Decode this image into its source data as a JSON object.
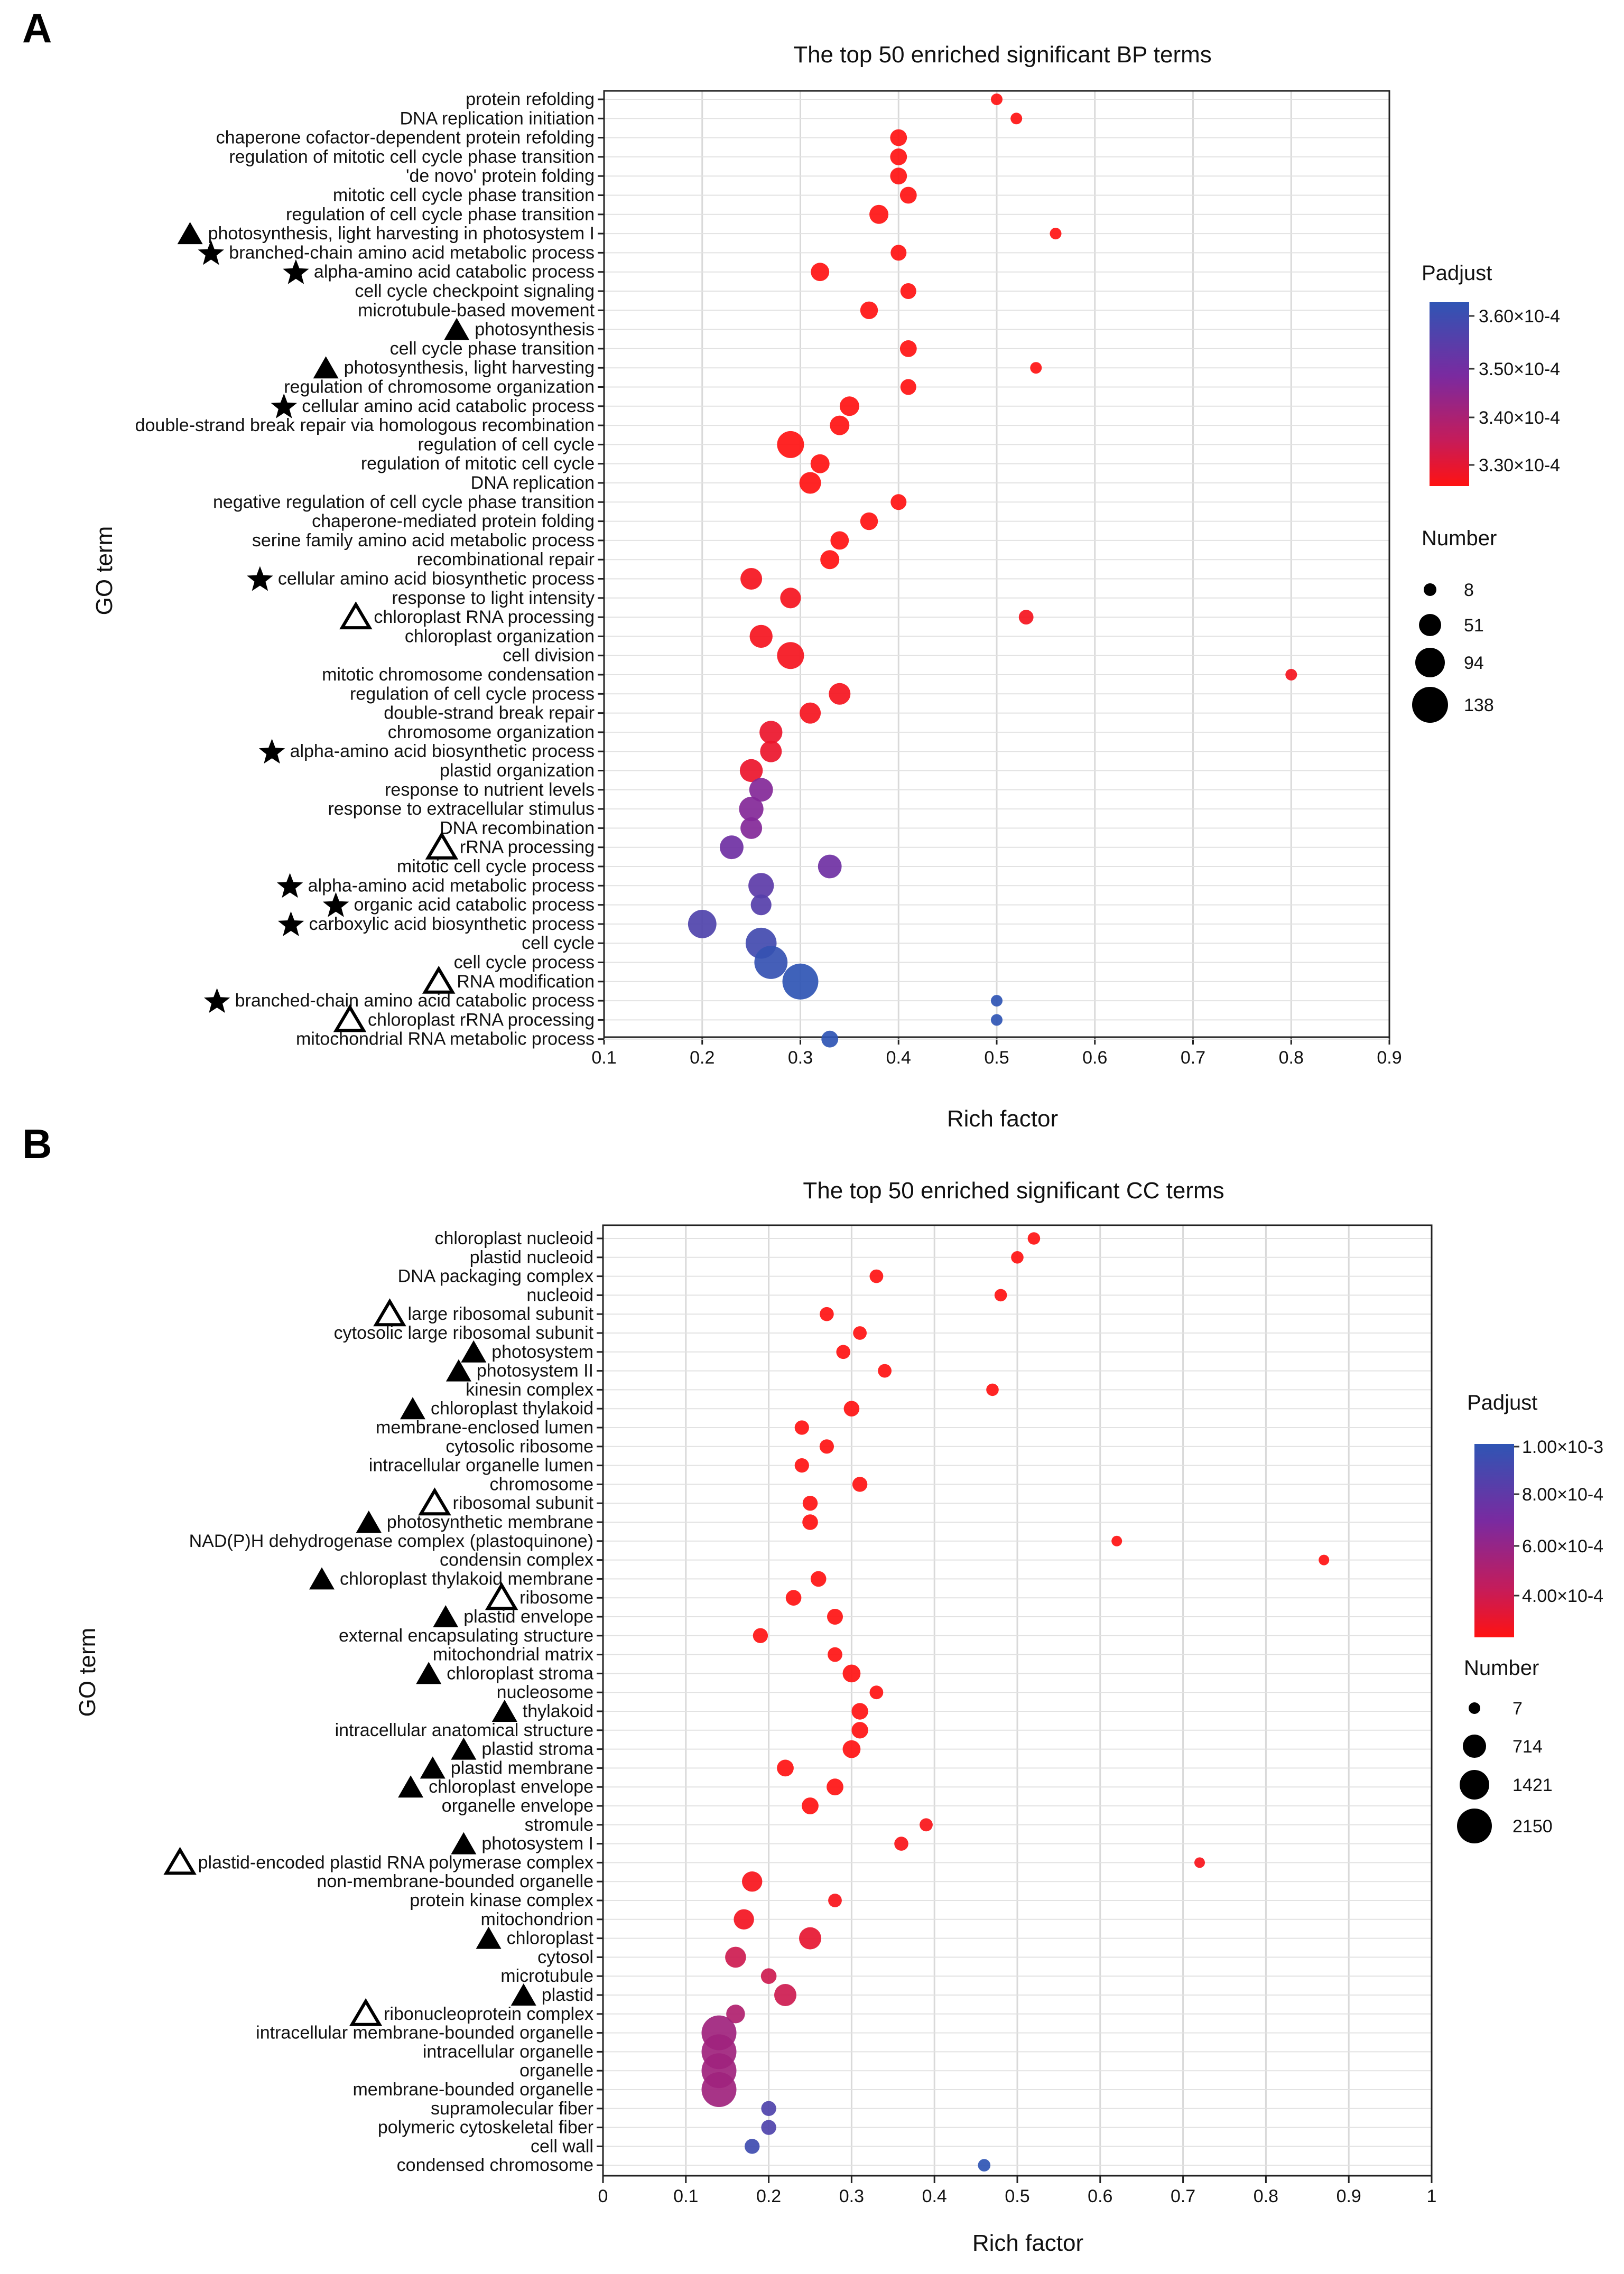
{
  "chart_data": [
    {
      "panel": "A",
      "type": "scatter",
      "title": "The top 50 enriched significant BP terms",
      "xlabel": "Rich factor",
      "ylabel": "GO term",
      "xlim": [
        0.1,
        0.9
      ],
      "xticks": [
        0.1,
        0.2,
        0.3,
        0.4,
        0.5,
        0.6,
        0.7,
        0.8,
        0.9
      ],
      "xtick_labels": [
        "0.1",
        "0.2",
        "0.3",
        "0.4",
        "0.5",
        "0.6",
        "0.7",
        "0.8",
        "0.9"
      ],
      "color_legend": {
        "title": "Padjust",
        "labels": [
          "3.60×10-4",
          "3.50×10-4",
          "3.40×10-4",
          "3.30×10-4"
        ],
        "colors": [
          "#3a4fb0",
          "#7b2d9e",
          "#c02060",
          "#ff1010"
        ]
      },
      "size_legend": {
        "title": "Number",
        "values": [
          8,
          51,
          94,
          138
        ],
        "labels": [
          "8",
          "51",
          "94",
          "138"
        ]
      },
      "marker_colors": {
        "filled_triangle": "#000000",
        "star": "#000000",
        "open_triangle": "#000000"
      },
      "terms": [
        {
          "label": "protein refolding",
          "x": 0.5,
          "number": 8,
          "padj": 0.000328,
          "marker": ""
        },
        {
          "label": "DNA replication initiation",
          "x": 0.52,
          "number": 8,
          "padj": 0.000328,
          "marker": ""
        },
        {
          "label": "chaperone cofactor-dependent protein refolding",
          "x": 0.4,
          "number": 14,
          "padj": 0.000328,
          "marker": ""
        },
        {
          "label": "regulation of mitotic cell cycle phase transition",
          "x": 0.4,
          "number": 14,
          "padj": 0.000328,
          "marker": ""
        },
        {
          "label": "'de novo' protein folding",
          "x": 0.4,
          "number": 14,
          "padj": 0.000328,
          "marker": ""
        },
        {
          "label": "mitotic cell cycle phase transition",
          "x": 0.41,
          "number": 14,
          "padj": 0.000328,
          "marker": ""
        },
        {
          "label": "regulation of cell cycle phase transition",
          "x": 0.38,
          "number": 20,
          "padj": 0.000328,
          "marker": ""
        },
        {
          "label": "photosynthesis, light harvesting in photosystem I",
          "x": 0.56,
          "number": 8,
          "padj": 0.000328,
          "marker": "filled_triangle"
        },
        {
          "label": "branched-chain amino acid metabolic process",
          "x": 0.4,
          "number": 12,
          "padj": 0.000328,
          "marker": "star"
        },
        {
          "label": "alpha-amino acid catabolic process",
          "x": 0.32,
          "number": 18,
          "padj": 0.000328,
          "marker": "star"
        },
        {
          "label": "cell cycle checkpoint signaling",
          "x": 0.41,
          "number": 12,
          "padj": 0.000328,
          "marker": ""
        },
        {
          "label": "microtubule-based movement",
          "x": 0.37,
          "number": 16,
          "padj": 0.000328,
          "marker": ""
        },
        {
          "label": "photosynthesis",
          "x": null,
          "number": null,
          "padj": null,
          "marker": "filled_triangle"
        },
        {
          "label": "cell cycle phase transition",
          "x": 0.41,
          "number": 14,
          "padj": 0.000328,
          "marker": ""
        },
        {
          "label": "photosynthesis, light harvesting",
          "x": 0.54,
          "number": 8,
          "padj": 0.000328,
          "marker": "filled_triangle"
        },
        {
          "label": "regulation of chromosome organization",
          "x": 0.41,
          "number": 12,
          "padj": 0.000328,
          "marker": ""
        },
        {
          "label": "cellular amino acid catabolic process",
          "x": 0.35,
          "number": 22,
          "padj": 0.000328,
          "marker": "star"
        },
        {
          "label": "double-strand break repair via homologous recombination",
          "x": 0.34,
          "number": 22,
          "padj": 0.000328,
          "marker": ""
        },
        {
          "label": "regulation of cell cycle",
          "x": 0.29,
          "number": 60,
          "padj": 0.000328,
          "marker": ""
        },
        {
          "label": "regulation of mitotic cell cycle",
          "x": 0.32,
          "number": 20,
          "padj": 0.000328,
          "marker": ""
        },
        {
          "label": "DNA replication",
          "x": 0.31,
          "number": 30,
          "padj": 0.000328,
          "marker": ""
        },
        {
          "label": "negative regulation of cell cycle phase transition",
          "x": 0.4,
          "number": 12,
          "padj": 0.000328,
          "marker": ""
        },
        {
          "label": "chaperone-mediated protein folding",
          "x": 0.37,
          "number": 16,
          "padj": 0.000328,
          "marker": ""
        },
        {
          "label": "serine family amino acid metabolic process",
          "x": 0.34,
          "number": 18,
          "padj": 0.000328,
          "marker": ""
        },
        {
          "label": "recombinational repair",
          "x": 0.33,
          "number": 20,
          "padj": 0.000328,
          "marker": ""
        },
        {
          "label": "cellular amino acid biosynthetic process",
          "x": 0.25,
          "number": 30,
          "padj": 0.00033,
          "marker": "star"
        },
        {
          "label": "response to light intensity",
          "x": 0.29,
          "number": 26,
          "padj": 0.00033,
          "marker": ""
        },
        {
          "label": "chloroplast RNA processing",
          "x": 0.53,
          "number": 10,
          "padj": 0.00033,
          "marker": "open_triangle"
        },
        {
          "label": "chloroplast organization",
          "x": 0.26,
          "number": 36,
          "padj": 0.00033,
          "marker": ""
        },
        {
          "label": "cell division",
          "x": 0.29,
          "number": 60,
          "padj": 0.00033,
          "marker": ""
        },
        {
          "label": "mitotic chromosome condensation",
          "x": 0.8,
          "number": 8,
          "padj": 0.00033,
          "marker": ""
        },
        {
          "label": "regulation of cell cycle process",
          "x": 0.34,
          "number": 30,
          "padj": 0.00033,
          "marker": ""
        },
        {
          "label": "double-strand break repair",
          "x": 0.31,
          "number": 28,
          "padj": 0.00033,
          "marker": ""
        },
        {
          "label": "chromosome organization",
          "x": 0.27,
          "number": 36,
          "padj": 0.000332,
          "marker": ""
        },
        {
          "label": "alpha-amino acid biosynthetic process",
          "x": 0.27,
          "number": 30,
          "padj": 0.000332,
          "marker": "star"
        },
        {
          "label": "plastid organization",
          "x": 0.25,
          "number": 36,
          "padj": 0.000332,
          "marker": ""
        },
        {
          "label": "response to nutrient levels",
          "x": 0.26,
          "number": 40,
          "padj": 0.00035,
          "marker": ""
        },
        {
          "label": "response to extracellular stimulus",
          "x": 0.25,
          "number": 44,
          "padj": 0.00035,
          "marker": ""
        },
        {
          "label": "DNA recombination",
          "x": 0.25,
          "number": 30,
          "padj": 0.00035,
          "marker": ""
        },
        {
          "label": "rRNA processing",
          "x": 0.23,
          "number": 40,
          "padj": 0.000353,
          "marker": "open_triangle"
        },
        {
          "label": "mitotic cell cycle process",
          "x": 0.33,
          "number": 40,
          "padj": 0.000353,
          "marker": ""
        },
        {
          "label": "alpha-amino acid metabolic process",
          "x": 0.26,
          "number": 50,
          "padj": 0.000356,
          "marker": "star"
        },
        {
          "label": "organic acid catabolic process",
          "x": 0.26,
          "number": 26,
          "padj": 0.000357,
          "marker": "star"
        },
        {
          "label": "carboxylic acid biosynthetic process",
          "x": 0.2,
          "number": 70,
          "padj": 0.000358,
          "marker": "star"
        },
        {
          "label": "cell cycle",
          "x": 0.26,
          "number": 90,
          "padj": 0.00036,
          "marker": ""
        },
        {
          "label": "cell cycle process",
          "x": 0.27,
          "number": 110,
          "padj": 0.000362,
          "marker": ""
        },
        {
          "label": "RNA modification",
          "x": 0.3,
          "number": 138,
          "padj": 0.000363,
          "marker": "open_triangle"
        },
        {
          "label": "branched-chain amino acid catabolic process",
          "x": 0.5,
          "number": 8,
          "padj": 0.000363,
          "marker": "star"
        },
        {
          "label": "chloroplast rRNA processing",
          "x": 0.5,
          "number": 8,
          "padj": 0.000363,
          "marker": "open_triangle"
        },
        {
          "label": "mitochondrial RNA metabolic process",
          "x": 0.33,
          "number": 14,
          "padj": 0.000363,
          "marker": ""
        }
      ]
    },
    {
      "panel": "B",
      "type": "scatter",
      "title": "The top 50 enriched significant CC terms",
      "xlabel": "Rich factor",
      "ylabel": "GO term",
      "xlim": [
        0,
        1
      ],
      "xticks": [
        0,
        0.1,
        0.2,
        0.3,
        0.4,
        0.5,
        0.6,
        0.7,
        0.8,
        0.9,
        1
      ],
      "xtick_labels": [
        "0",
        "0.1",
        "0.2",
        "0.3",
        "0.4",
        "0.5",
        "0.6",
        "0.7",
        "0.8",
        "0.9",
        "1"
      ],
      "color_legend": {
        "title": "Padjust",
        "labels": [
          "1.00×10-3",
          "8.00×10-4",
          "6.00×10-4",
          "4.00×10-4"
        ],
        "colors": [
          "#3a4fb0",
          "#7b2d9e",
          "#c02060",
          "#ff1010"
        ]
      },
      "size_legend": {
        "title": "Number",
        "values": [
          7,
          714,
          1421,
          2150
        ],
        "labels": [
          "7",
          "714",
          "1421",
          "2150"
        ]
      },
      "marker_colors": {
        "filled_triangle": "#000000",
        "star": "#000000",
        "open_triangle": "#000000"
      },
      "terms": [
        {
          "label": "chloroplast nucleoid",
          "x": 0.52,
          "number": 20,
          "padj": 0.0003,
          "marker": ""
        },
        {
          "label": "plastid nucleoid",
          "x": 0.5,
          "number": 20,
          "padj": 0.0003,
          "marker": ""
        },
        {
          "label": "DNA packaging complex",
          "x": 0.33,
          "number": 40,
          "padj": 0.0003,
          "marker": ""
        },
        {
          "label": "nucleoid",
          "x": 0.48,
          "number": 20,
          "padj": 0.0003,
          "marker": ""
        },
        {
          "label": "large ribosomal subunit",
          "x": 0.27,
          "number": 50,
          "padj": 0.0003,
          "marker": "open_triangle"
        },
        {
          "label": "cytosolic large ribosomal subunit",
          "x": 0.31,
          "number": 40,
          "padj": 0.0003,
          "marker": ""
        },
        {
          "label": "photosystem",
          "x": 0.29,
          "number": 50,
          "padj": 0.0003,
          "marker": "filled_triangle"
        },
        {
          "label": "photosystem II",
          "x": 0.34,
          "number": 40,
          "padj": 0.0003,
          "marker": "filled_triangle"
        },
        {
          "label": "kinesin complex",
          "x": 0.47,
          "number": 20,
          "padj": 0.0003,
          "marker": ""
        },
        {
          "label": "chloroplast thylakoid",
          "x": 0.3,
          "number": 100,
          "padj": 0.0003,
          "marker": "filled_triangle"
        },
        {
          "label": "membrane-enclosed lumen",
          "x": 0.24,
          "number": 60,
          "padj": 0.0003,
          "marker": ""
        },
        {
          "label": "cytosolic ribosome",
          "x": 0.27,
          "number": 60,
          "padj": 0.0003,
          "marker": ""
        },
        {
          "label": "intracellular organelle lumen",
          "x": 0.24,
          "number": 60,
          "padj": 0.0003,
          "marker": ""
        },
        {
          "label": "chromosome",
          "x": 0.31,
          "number": 80,
          "padj": 0.0003,
          "marker": ""
        },
        {
          "label": "ribosomal subunit",
          "x": 0.25,
          "number": 80,
          "padj": 0.0003,
          "marker": "open_triangle"
        },
        {
          "label": "photosynthetic membrane",
          "x": 0.25,
          "number": 100,
          "padj": 0.0003,
          "marker": "filled_triangle"
        },
        {
          "label": "NAD(P)H dehydrogenase complex (plastoquinone)",
          "x": 0.62,
          "number": 7,
          "padj": 0.0003,
          "marker": ""
        },
        {
          "label": "condensin complex",
          "x": 0.87,
          "number": 7,
          "padj": 0.0003,
          "marker": ""
        },
        {
          "label": "chloroplast thylakoid membrane",
          "x": 0.26,
          "number": 100,
          "padj": 0.0003,
          "marker": "filled_triangle"
        },
        {
          "label": "ribosome",
          "x": 0.23,
          "number": 100,
          "padj": 0.0003,
          "marker": "open_triangle"
        },
        {
          "label": "plastid envelope",
          "x": 0.28,
          "number": 110,
          "padj": 0.0003,
          "marker": "filled_triangle"
        },
        {
          "label": "external encapsulating structure",
          "x": 0.19,
          "number": 80,
          "padj": 0.0003,
          "marker": ""
        },
        {
          "label": "mitochondrial matrix",
          "x": 0.28,
          "number": 70,
          "padj": 0.0003,
          "marker": ""
        },
        {
          "label": "chloroplast stroma",
          "x": 0.3,
          "number": 200,
          "padj": 0.0003,
          "marker": "filled_triangle"
        },
        {
          "label": "nucleosome",
          "x": 0.33,
          "number": 40,
          "padj": 0.0003,
          "marker": ""
        },
        {
          "label": "thylakoid",
          "x": 0.31,
          "number": 140,
          "padj": 0.0003,
          "marker": "filled_triangle"
        },
        {
          "label": "intracellular anatomical structure",
          "x": 0.31,
          "number": 140,
          "padj": 0.0003,
          "marker": ""
        },
        {
          "label": "plastid stroma",
          "x": 0.3,
          "number": 200,
          "padj": 0.0003,
          "marker": "filled_triangle"
        },
        {
          "label": "plastid membrane",
          "x": 0.22,
          "number": 150,
          "padj": 0.0003,
          "marker": "filled_triangle"
        },
        {
          "label": "chloroplast envelope",
          "x": 0.28,
          "number": 150,
          "padj": 0.0003,
          "marker": "filled_triangle"
        },
        {
          "label": "organelle envelope",
          "x": 0.25,
          "number": 150,
          "padj": 0.0003,
          "marker": ""
        },
        {
          "label": "stromule",
          "x": 0.39,
          "number": 30,
          "padj": 0.00032,
          "marker": ""
        },
        {
          "label": "photosystem I",
          "x": 0.36,
          "number": 50,
          "padj": 0.00032,
          "marker": "filled_triangle"
        },
        {
          "label": "plastid-encoded plastid RNA polymerase complex",
          "x": 0.72,
          "number": 7,
          "padj": 0.00033,
          "marker": "open_triangle"
        },
        {
          "label": "non-membrane-bounded organelle",
          "x": 0.18,
          "number": 350,
          "padj": 0.00033,
          "marker": ""
        },
        {
          "label": "protein kinase complex",
          "x": 0.28,
          "number": 40,
          "padj": 0.00033,
          "marker": ""
        },
        {
          "label": "mitochondrion",
          "x": 0.17,
          "number": 350,
          "padj": 0.00035,
          "marker": ""
        },
        {
          "label": "chloroplast",
          "x": 0.25,
          "number": 500,
          "padj": 0.0004,
          "marker": "filled_triangle"
        },
        {
          "label": "cytosol",
          "x": 0.16,
          "number": 400,
          "padj": 0.0005,
          "marker": ""
        },
        {
          "label": "microtubule",
          "x": 0.2,
          "number": 100,
          "padj": 0.0005,
          "marker": ""
        },
        {
          "label": "plastid",
          "x": 0.22,
          "number": 500,
          "padj": 0.0005,
          "marker": "filled_triangle"
        },
        {
          "label": "ribonucleoprotein complex",
          "x": 0.16,
          "number": 250,
          "padj": 0.0006,
          "marker": "open_triangle"
        },
        {
          "label": "intracellular membrane-bounded organelle",
          "x": 0.14,
          "number": 2150,
          "padj": 0.00065,
          "marker": ""
        },
        {
          "label": "intracellular organelle",
          "x": 0.14,
          "number": 2150,
          "padj": 0.00065,
          "marker": ""
        },
        {
          "label": "organelle",
          "x": 0.14,
          "number": 2150,
          "padj": 0.00065,
          "marker": ""
        },
        {
          "label": "membrane-bounded organelle",
          "x": 0.14,
          "number": 2150,
          "padj": 0.00065,
          "marker": ""
        },
        {
          "label": "supramolecular fiber",
          "x": 0.2,
          "number": 80,
          "padj": 0.0009,
          "marker": ""
        },
        {
          "label": "polymeric cytoskeletal fiber",
          "x": 0.2,
          "number": 80,
          "padj": 0.0009,
          "marker": ""
        },
        {
          "label": "cell wall",
          "x": 0.18,
          "number": 80,
          "padj": 0.00095,
          "marker": ""
        },
        {
          "label": "condensed chromosome",
          "x": 0.46,
          "number": 20,
          "padj": 0.001,
          "marker": ""
        }
      ]
    }
  ]
}
